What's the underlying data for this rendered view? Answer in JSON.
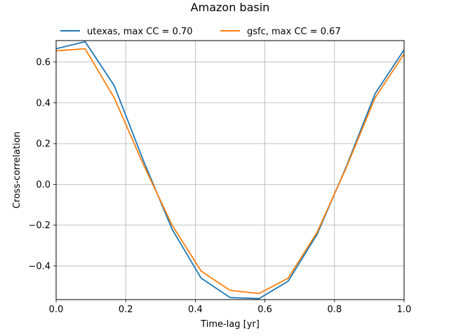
{
  "chart_data": {
    "type": "line",
    "title": "Amazon basin",
    "xlabel": "Time-lag [yr]",
    "ylabel": "Cross-correlation",
    "xlim": [
      0.0,
      1.0
    ],
    "ylim": [
      -0.565,
      0.705
    ],
    "xticks": [
      0.0,
      0.2,
      0.4,
      0.6,
      0.8,
      1.0
    ],
    "yticks": [
      -0.4,
      -0.2,
      0.0,
      0.2,
      0.4,
      0.6
    ],
    "xtick_labels": [
      "0.0",
      "0.2",
      "0.4",
      "0.6",
      "0.8",
      "1.0"
    ],
    "ytick_labels": [
      "−0.4",
      "−0.2",
      "0.0",
      "0.2",
      "0.4",
      "0.6"
    ],
    "grid": true,
    "legend_position": "top-center",
    "series": [
      {
        "name": "utexas, max CC = 0.70",
        "color": "#1f77b4",
        "x": [
          0.0,
          0.0833,
          0.1667,
          0.25,
          0.3333,
          0.4167,
          0.5,
          0.5833,
          0.6667,
          0.75,
          0.8333,
          0.9167,
          1.0
        ],
        "y": [
          0.665,
          0.7,
          0.485,
          0.12,
          -0.22,
          -0.46,
          -0.555,
          -0.56,
          -0.475,
          -0.245,
          0.085,
          0.445,
          0.66
        ]
      },
      {
        "name": "gsfc, max CC = 0.67",
        "color": "#ff7f0e",
        "x": [
          0.0,
          0.0833,
          0.1667,
          0.25,
          0.3333,
          0.4167,
          0.5,
          0.5833,
          0.6667,
          0.75,
          0.8333,
          0.9167,
          1.0
        ],
        "y": [
          0.655,
          0.665,
          0.425,
          0.1,
          -0.2,
          -0.425,
          -0.52,
          -0.535,
          -0.46,
          -0.235,
          0.08,
          0.425,
          0.64
        ]
      }
    ]
  }
}
